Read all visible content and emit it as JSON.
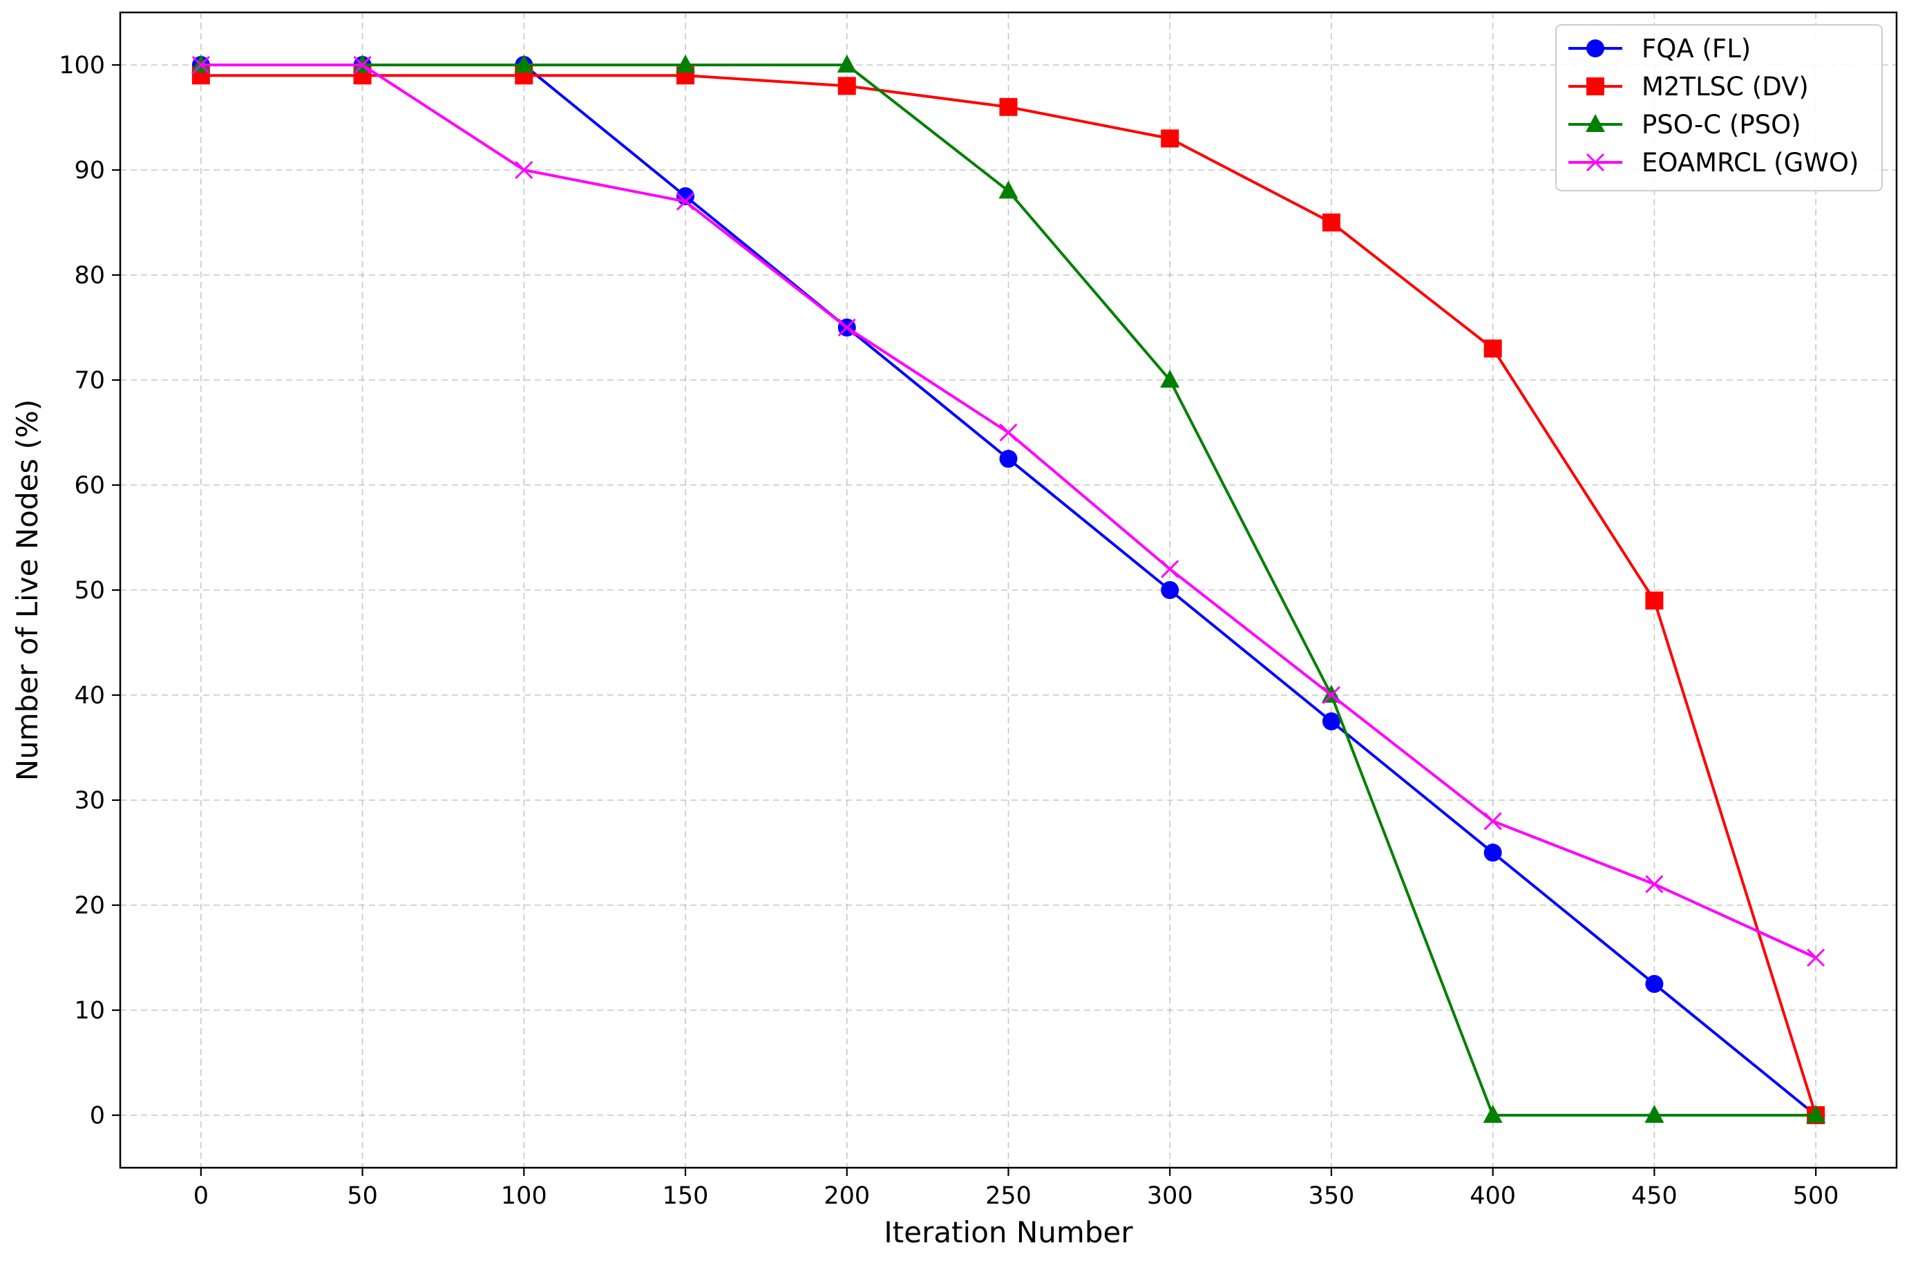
{
  "chart_data": {
    "type": "line",
    "title": "",
    "xlabel": "Iteration Number",
    "ylabel": "Number of Live Nodes (%)",
    "x": [
      0,
      50,
      100,
      150,
      200,
      250,
      300,
      350,
      400,
      450,
      500
    ],
    "xlim": [
      -25,
      525
    ],
    "ylim": [
      -5,
      105
    ],
    "xticks": [
      "0",
      "50",
      "100",
      "150",
      "200",
      "250",
      "300",
      "350",
      "400",
      "450",
      "500"
    ],
    "yticks": [
      "0",
      "10",
      "20",
      "30",
      "40",
      "50",
      "60",
      "70",
      "80",
      "90",
      "100"
    ],
    "grid": true,
    "legend_position": "top-right",
    "series": [
      {
        "name": "FQA (FL)",
        "color": "#0000ff",
        "marker": "circle",
        "values": [
          100,
          100,
          100,
          87.5,
          75,
          62.5,
          50,
          37.5,
          25,
          12.5,
          0
        ]
      },
      {
        "name": "M2TLSC (DV)",
        "color": "#ff0000",
        "marker": "square",
        "values": [
          99,
          99,
          99,
          99,
          98,
          96,
          93,
          85,
          73,
          49,
          0
        ]
      },
      {
        "name": "PSO-C (PSO)",
        "color": "#008000",
        "marker": "triangle",
        "values": [
          100,
          100,
          100,
          100,
          100,
          88,
          70,
          40,
          0,
          0,
          0
        ]
      },
      {
        "name": "EOAMRCL (GWO)",
        "color": "#ff00ff",
        "marker": "x",
        "values": [
          100,
          100,
          90,
          87,
          75,
          65,
          52,
          40,
          28,
          22,
          15
        ]
      }
    ]
  }
}
